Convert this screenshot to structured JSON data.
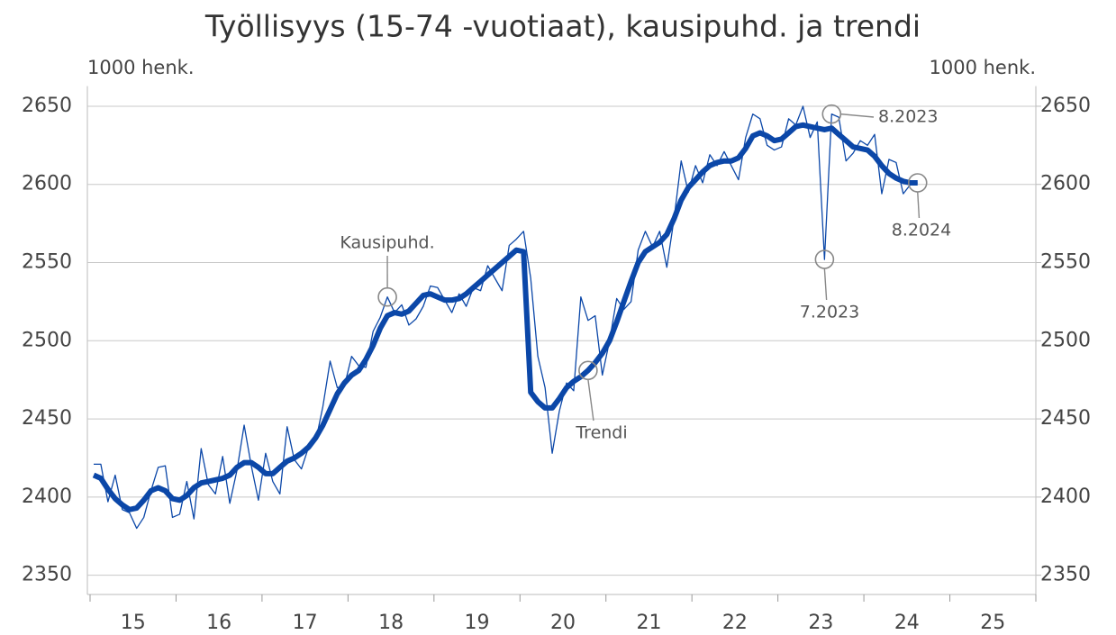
{
  "chart_data": {
    "type": "line",
    "title": "Työllisyys (15-74 -vuotiaat), kausipuhd. ja trendi",
    "y_label": "1000 henk.",
    "y2_label": "1000 henk.",
    "x": [
      2015.042,
      2015.125,
      2015.208,
      2015.292,
      2015.375,
      2015.458,
      2015.542,
      2015.625,
      2015.708,
      2015.792,
      2015.875,
      2015.958,
      2016.042,
      2016.125,
      2016.208,
      2016.292,
      2016.375,
      2016.458,
      2016.542,
      2016.625,
      2016.708,
      2016.792,
      2016.875,
      2016.958,
      2017.042,
      2017.125,
      2017.208,
      2017.292,
      2017.375,
      2017.458,
      2017.542,
      2017.625,
      2017.708,
      2017.792,
      2017.875,
      2017.958,
      2018.042,
      2018.125,
      2018.208,
      2018.292,
      2018.375,
      2018.458,
      2018.542,
      2018.625,
      2018.708,
      2018.792,
      2018.875,
      2018.958,
      2019.042,
      2019.125,
      2019.208,
      2019.292,
      2019.375,
      2019.458,
      2019.542,
      2019.625,
      2019.708,
      2019.792,
      2019.875,
      2019.958,
      2020.042,
      2020.125,
      2020.208,
      2020.292,
      2020.375,
      2020.458,
      2020.542,
      2020.625,
      2020.708,
      2020.792,
      2020.875,
      2020.958,
      2021.042,
      2021.125,
      2021.208,
      2021.292,
      2021.375,
      2021.458,
      2021.542,
      2021.625,
      2021.708,
      2021.792,
      2021.875,
      2021.958,
      2022.042,
      2022.125,
      2022.208,
      2022.292,
      2022.375,
      2022.458,
      2022.542,
      2022.625,
      2022.708,
      2022.792,
      2022.875,
      2022.958,
      2023.042,
      2023.125,
      2023.208,
      2023.292,
      2023.375,
      2023.458,
      2023.542,
      2023.625,
      2023.708,
      2023.792,
      2023.875,
      2023.958,
      2024.042,
      2024.125,
      2024.208,
      2024.292,
      2024.375,
      2024.458,
      2024.542,
      2024.625
    ],
    "series": [
      {
        "name": "Kausipuhd.",
        "color": "#0b47a8",
        "width": 1.3,
        "values": [
          2421,
          2421,
          2397,
          2414,
          2392,
          2390,
          2380,
          2387,
          2404,
          2419,
          2420,
          2387,
          2389,
          2410,
          2386,
          2431,
          2408,
          2402,
          2426,
          2396,
          2417,
          2446,
          2420,
          2398,
          2428,
          2410,
          2402,
          2445,
          2424,
          2418,
          2432,
          2436,
          2458,
          2487,
          2470,
          2471,
          2490,
          2484,
          2483,
          2506,
          2515,
          2528,
          2518,
          2523,
          2510,
          2514,
          2522,
          2535,
          2534,
          2526,
          2518,
          2530,
          2522,
          2534,
          2532,
          2548,
          2540,
          2532,
          2561,
          2565,
          2570,
          2540,
          2490,
          2470,
          2428,
          2455,
          2473,
          2468,
          2528,
          2513,
          2516,
          2478,
          2500,
          2527,
          2520,
          2525,
          2558,
          2570,
          2560,
          2570,
          2547,
          2578,
          2615,
          2595,
          2612,
          2601,
          2619,
          2612,
          2621,
          2612,
          2603,
          2630,
          2645,
          2642,
          2625,
          2622,
          2624,
          2642,
          2638,
          2650,
          2630,
          2640,
          2552,
          2645,
          2643,
          2615,
          2620,
          2628,
          2625,
          2632,
          2594,
          2616,
          2614,
          2594,
          2600,
          2601
        ]
      },
      {
        "name": "Trendi",
        "color": "#0b47a8",
        "width": 6,
        "values": [
          2414,
          2412,
          2405,
          2399,
          2395,
          2392,
          2393,
          2398,
          2404,
          2406,
          2404,
          2399,
          2398,
          2401,
          2406,
          2409,
          2410,
          2411,
          2412,
          2414,
          2419,
          2422,
          2422,
          2419,
          2415,
          2415,
          2419,
          2423,
          2425,
          2428,
          2432,
          2438,
          2446,
          2456,
          2466,
          2473,
          2478,
          2481,
          2488,
          2497,
          2508,
          2516,
          2518,
          2517,
          2519,
          2524,
          2529,
          2530,
          2528,
          2526,
          2526,
          2527,
          2530,
          2534,
          2538,
          2542,
          2546,
          2550,
          2554,
          2558,
          2557,
          2467,
          2461,
          2457,
          2457,
          2463,
          2470,
          2474,
          2477,
          2481,
          2486,
          2492,
          2500,
          2512,
          2525,
          2538,
          2550,
          2557,
          2560,
          2563,
          2568,
          2578,
          2590,
          2598,
          2603,
          2608,
          2612,
          2614,
          2615,
          2615,
          2617,
          2623,
          2631,
          2633,
          2631,
          2628,
          2629,
          2633,
          2637,
          2638,
          2637,
          2636,
          2635,
          2636,
          2632,
          2628,
          2624,
          2623,
          2622,
          2618,
          2612,
          2607,
          2604,
          2602,
          2601,
          2601
        ]
      }
    ],
    "xlim": [
      2015,
      2026
    ],
    "xticks": [
      {
        "value": 2015.5,
        "label": "15"
      },
      {
        "value": 2016.5,
        "label": "16"
      },
      {
        "value": 2017.5,
        "label": "17"
      },
      {
        "value": 2018.5,
        "label": "18"
      },
      {
        "value": 2019.5,
        "label": "19"
      },
      {
        "value": 2020.5,
        "label": "20"
      },
      {
        "value": 2021.5,
        "label": "21"
      },
      {
        "value": 2022.5,
        "label": "22"
      },
      {
        "value": 2023.5,
        "label": "23"
      },
      {
        "value": 2024.5,
        "label": "24"
      },
      {
        "value": 2025.5,
        "label": "25"
      }
    ],
    "ylim": [
      2340,
      2660
    ],
    "yticks": [
      2350,
      2400,
      2450,
      2500,
      2550,
      2600,
      2650
    ],
    "y2lim": [
      2340,
      2660
    ],
    "y2ticks": [
      2350,
      2400,
      2450,
      2500,
      2550,
      2600,
      2650
    ],
    "grid": true,
    "annotations": [
      {
        "text": "Kausipuhd.",
        "series": 0,
        "index": 41
      },
      {
        "text": "Trendi",
        "series": 1,
        "index": 69
      },
      {
        "text": "7.2023",
        "series": 0,
        "index": 102
      },
      {
        "text": "8.2023",
        "series": 0,
        "index": 103
      },
      {
        "text": "8.2024",
        "series": 0,
        "index": 115
      }
    ]
  }
}
